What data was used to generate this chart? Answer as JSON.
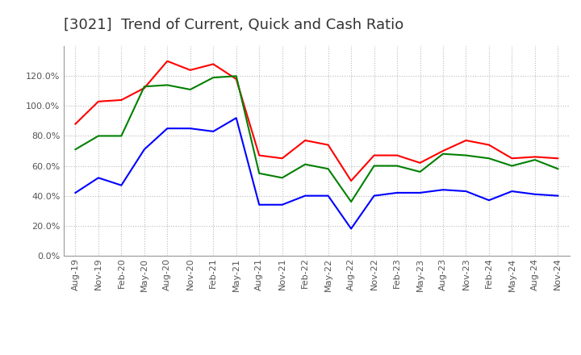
{
  "title": "[3021]  Trend of Current, Quick and Cash Ratio",
  "x_labels": [
    "Aug-19",
    "Nov-19",
    "Feb-20",
    "May-20",
    "Aug-20",
    "Nov-20",
    "Feb-21",
    "May-21",
    "Aug-21",
    "Nov-21",
    "Feb-22",
    "May-22",
    "Aug-22",
    "Nov-22",
    "Feb-23",
    "May-23",
    "Aug-23",
    "Nov-23",
    "Feb-24",
    "May-24",
    "Aug-24",
    "Nov-24"
  ],
  "current_ratio": [
    0.88,
    1.03,
    1.04,
    1.12,
    1.3,
    1.24,
    1.28,
    1.18,
    0.67,
    0.65,
    0.77,
    0.74,
    0.5,
    0.67,
    0.67,
    0.62,
    0.7,
    0.77,
    0.74,
    0.65,
    0.66,
    0.65
  ],
  "quick_ratio": [
    0.71,
    0.8,
    0.8,
    1.13,
    1.14,
    1.11,
    1.19,
    1.2,
    0.55,
    0.52,
    0.61,
    0.58,
    0.36,
    0.6,
    0.6,
    0.56,
    0.68,
    0.67,
    0.65,
    0.6,
    0.64,
    0.58
  ],
  "cash_ratio": [
    0.42,
    0.52,
    0.47,
    0.71,
    0.85,
    0.85,
    0.83,
    0.92,
    0.34,
    0.34,
    0.4,
    0.4,
    0.18,
    0.4,
    0.42,
    0.42,
    0.44,
    0.43,
    0.37,
    0.43,
    0.41,
    0.4
  ],
  "current_color": "#FF0000",
  "quick_color": "#008000",
  "cash_color": "#0000FF",
  "ylim": [
    0.0,
    1.4
  ],
  "yticks": [
    0.0,
    0.2,
    0.4,
    0.6,
    0.8,
    1.0,
    1.2
  ],
  "background_color": "#FFFFFF",
  "grid_color": "#BBBBBB",
  "title_fontsize": 13,
  "tick_fontsize": 8,
  "legend_fontsize": 10
}
